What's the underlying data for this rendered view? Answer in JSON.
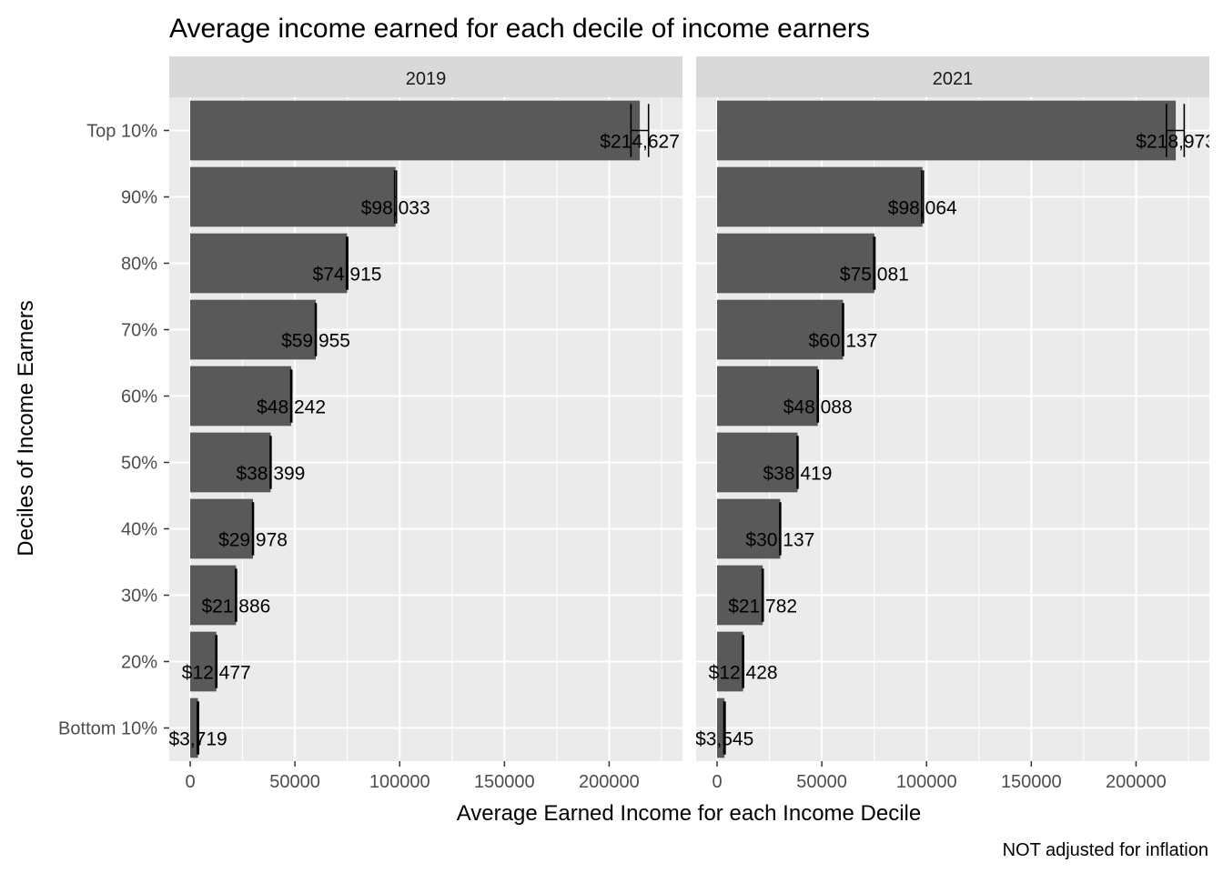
{
  "chart_data": {
    "type": "bar",
    "orientation": "horizontal",
    "title": "Average income earned for each decile of income earners",
    "xlabel": "Average Earned Income for each Income Decile",
    "ylabel": "Deciles of Income Earners",
    "caption": "NOT adjusted for inflation",
    "xlim": [
      -10000,
      235000
    ],
    "x_ticks": [
      0,
      50000,
      100000,
      150000,
      200000
    ],
    "x_tick_labels": [
      "0",
      "50000",
      "100000",
      "150000",
      "200000"
    ],
    "categories": [
      "Bottom 10%",
      "20%",
      "30%",
      "40%",
      "50%",
      "60%",
      "70%",
      "80%",
      "90%",
      "Top 10%"
    ],
    "facets": [
      {
        "name": "2019",
        "values": [
          3719,
          12477,
          21886,
          29978,
          38399,
          48242,
          59955,
          74915,
          98033,
          214627
        ],
        "labels": [
          "$3,719",
          "$12,477",
          "$21,886",
          "$29,978",
          "$38,399",
          "$48,242",
          "$59,955",
          "$74,915",
          "$98,033",
          "$214,627"
        ],
        "error_low": [
          3400,
          12250,
          21650,
          29780,
          38200,
          48020,
          59750,
          74600,
          97600,
          210400
        ],
        "error_high": [
          4000,
          12700,
          22100,
          30180,
          38600,
          48480,
          60150,
          75200,
          98450,
          218800
        ]
      },
      {
        "name": "2021",
        "values": [
          3545,
          12428,
          21782,
          30137,
          38419,
          48088,
          60137,
          75081,
          98064,
          218973
        ],
        "labels": [
          "$3,545",
          "$12,428",
          "$21,782",
          "$30,137",
          "$38,419",
          "$48,088",
          "$60,137",
          "$75,081",
          "$98,064",
          "$218,973"
        ],
        "error_low": [
          3250,
          12200,
          21550,
          29930,
          38220,
          47860,
          59920,
          74800,
          97650,
          214500
        ],
        "error_high": [
          3850,
          12650,
          22010,
          30340,
          38620,
          48310,
          60350,
          75360,
          98480,
          223000
        ]
      }
    ],
    "colors": {
      "bar": "#595959",
      "panel_background": "#ebebeb",
      "grid": "#ffffff",
      "strip_background": "#d9d9d9",
      "error_bar": "#000000"
    },
    "grid": true,
    "legend": "none"
  }
}
